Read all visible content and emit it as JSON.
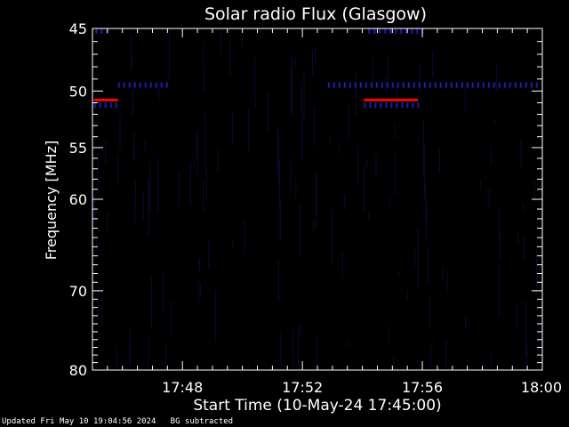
{
  "chart_data": {
    "type": "heatmap",
    "title": "Solar radio Flux (Glasgow)",
    "xlabel": "Start Time (10-May-24 17:45:00)",
    "ylabel": "Frequency [MHz]",
    "x_range_minutes": [
      0,
      15
    ],
    "x_ticks": [
      {
        "minute": 3,
        "label": "17:48"
      },
      {
        "minute": 7,
        "label": "17:52"
      },
      {
        "minute": 11,
        "label": "17:56"
      },
      {
        "minute": 15,
        "label": "18:00"
      }
    ],
    "y_range_mhz": [
      45,
      80
    ],
    "y_scale": "log",
    "y_ticks": [
      45,
      50,
      55,
      60,
      70,
      80
    ],
    "features": [
      {
        "kind": "strong-emission",
        "color": "#ff0000",
        "freq_mhz": 50.8,
        "minute_start": 0.05,
        "minute_end": 0.85
      },
      {
        "kind": "strong-emission",
        "color": "#ff0000",
        "freq_mhz": 50.8,
        "minute_start": 9.05,
        "minute_end": 10.85
      },
      {
        "kind": "weak-band",
        "color": "#1c1cb0",
        "freq_mhz": 49.5,
        "minute_start": 0.85,
        "minute_end": 2.6
      },
      {
        "kind": "weak-band",
        "color": "#1c1cb0",
        "freq_mhz": 49.5,
        "minute_start": 7.85,
        "minute_end": 14.9
      },
      {
        "kind": "weak-band",
        "color": "#1c1cb0",
        "freq_mhz": 45.2,
        "minute_start": 0.1,
        "minute_end": 0.6
      },
      {
        "kind": "weak-band",
        "color": "#1c1cb0",
        "freq_mhz": 45.2,
        "minute_start": 9.2,
        "minute_end": 11.1
      },
      {
        "kind": "weak-band",
        "color": "#1c1cb0",
        "freq_mhz": 51.2,
        "minute_start": 0.05,
        "minute_end": 0.85
      },
      {
        "kind": "weak-band",
        "color": "#1c1cb0",
        "freq_mhz": 51.2,
        "minute_start": 9.05,
        "minute_end": 10.85
      }
    ],
    "colors": {
      "background": "#000000",
      "axes": "#ffffff",
      "strong": "#ff0000",
      "weak": "#1c1cb0"
    }
  },
  "footer": {
    "updated": "Updated Fri May 10 19:04:56 2024",
    "note": "BG subtracted"
  }
}
